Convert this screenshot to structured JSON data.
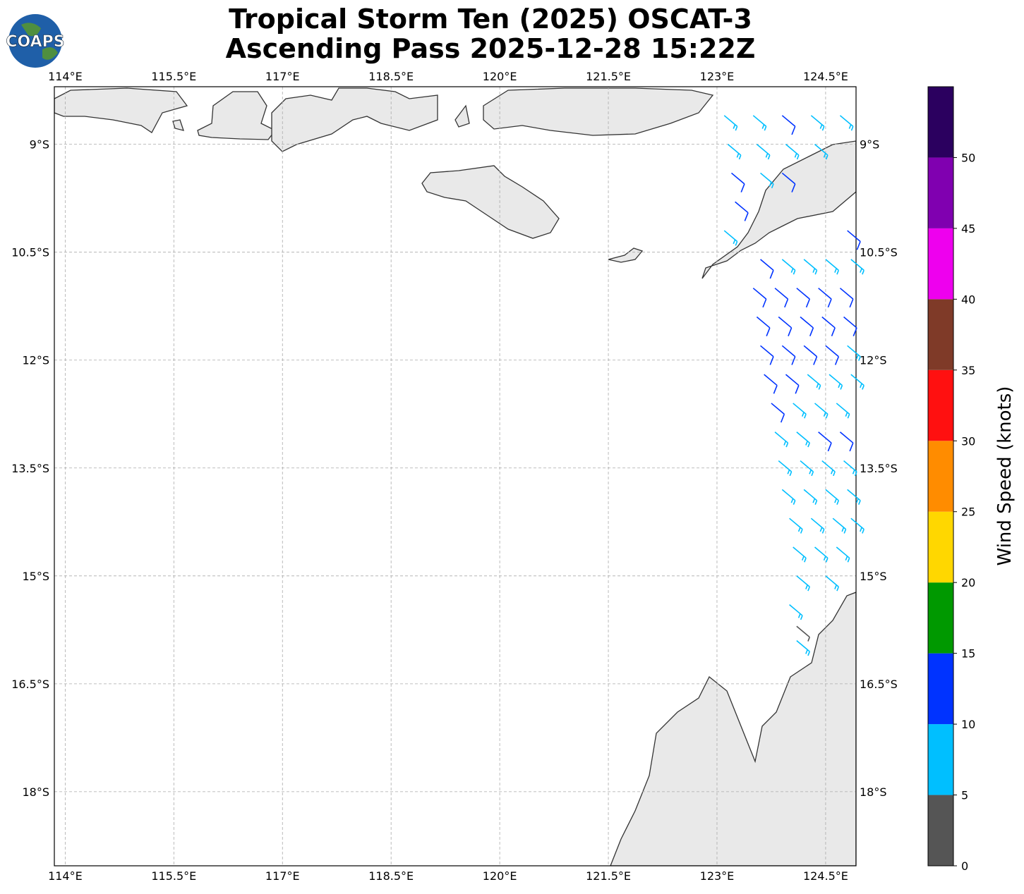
{
  "title": [
    "Tropical Storm Ten (2025) OSCAT-3",
    "Ascending Pass 2025-12-28 15:22Z"
  ],
  "logo": "COAPS",
  "map": {
    "lon_range": [
      113.85,
      124.92
    ],
    "lat_range": [
      -8.2,
      -19.03
    ],
    "xticks": [
      {
        "value": 114,
        "label": "114°E"
      },
      {
        "value": 115.5,
        "label": "115.5°E"
      },
      {
        "value": 117,
        "label": "117°E"
      },
      {
        "value": 118.5,
        "label": "118.5°E"
      },
      {
        "value": 120,
        "label": "120°E"
      },
      {
        "value": 121.5,
        "label": "121.5°E"
      },
      {
        "value": 123,
        "label": "123°E"
      },
      {
        "value": 124.5,
        "label": "124.5°E"
      }
    ],
    "yticks": [
      {
        "value": -9,
        "label": "9°S"
      },
      {
        "value": -10.5,
        "label": "10.5°S"
      },
      {
        "value": -12,
        "label": "12°S"
      },
      {
        "value": -13.5,
        "label": "13.5°S"
      },
      {
        "value": -15,
        "label": "15°S"
      },
      {
        "value": -16.5,
        "label": "16.5°S"
      },
      {
        "value": -18,
        "label": "18°S"
      }
    ],
    "grid": true,
    "wind_direction_deg": 130,
    "barbs": [
      [
        123.1,
        -8.6,
        8
      ],
      [
        123.5,
        -8.6,
        8
      ],
      [
        123.9,
        -8.6,
        12
      ],
      [
        124.3,
        -8.6,
        8
      ],
      [
        124.7,
        -8.6,
        8
      ],
      [
        123.15,
        -9.0,
        8
      ],
      [
        123.55,
        -9.0,
        8
      ],
      [
        123.95,
        -9.0,
        8
      ],
      [
        124.35,
        -9.0,
        8
      ],
      [
        123.2,
        -9.4,
        12
      ],
      [
        123.6,
        -9.4,
        8
      ],
      [
        123.9,
        -9.4,
        12
      ],
      [
        123.25,
        -9.8,
        12
      ],
      [
        123.1,
        -10.2,
        8
      ],
      [
        124.8,
        -10.2,
        12
      ],
      [
        123.6,
        -10.6,
        12
      ],
      [
        123.9,
        -10.6,
        8
      ],
      [
        124.2,
        -10.6,
        8
      ],
      [
        124.5,
        -10.6,
        8
      ],
      [
        124.85,
        -10.6,
        8
      ],
      [
        123.5,
        -11.0,
        12
      ],
      [
        123.8,
        -11.0,
        12
      ],
      [
        124.1,
        -11.0,
        12
      ],
      [
        124.4,
        -11.0,
        12
      ],
      [
        124.7,
        -11.0,
        12
      ],
      [
        123.55,
        -11.4,
        12
      ],
      [
        123.85,
        -11.4,
        12
      ],
      [
        124.15,
        -11.4,
        12
      ],
      [
        124.45,
        -11.4,
        12
      ],
      [
        124.75,
        -11.4,
        12
      ],
      [
        123.6,
        -11.8,
        12
      ],
      [
        123.9,
        -11.8,
        12
      ],
      [
        124.2,
        -11.8,
        12
      ],
      [
        124.5,
        -11.8,
        12
      ],
      [
        124.8,
        -11.8,
        8
      ],
      [
        123.65,
        -12.2,
        12
      ],
      [
        123.95,
        -12.2,
        12
      ],
      [
        124.25,
        -12.2,
        8
      ],
      [
        124.55,
        -12.2,
        8
      ],
      [
        124.85,
        -12.2,
        8
      ],
      [
        123.75,
        -12.6,
        12
      ],
      [
        124.05,
        -12.6,
        8
      ],
      [
        124.35,
        -12.6,
        8
      ],
      [
        124.65,
        -12.6,
        8
      ],
      [
        123.8,
        -13.0,
        8
      ],
      [
        124.1,
        -13.0,
        8
      ],
      [
        124.4,
        -13.0,
        12
      ],
      [
        124.7,
        -13.0,
        12
      ],
      [
        123.85,
        -13.4,
        8
      ],
      [
        124.15,
        -13.4,
        8
      ],
      [
        124.45,
        -13.4,
        8
      ],
      [
        124.75,
        -13.4,
        8
      ],
      [
        123.9,
        -13.8,
        8
      ],
      [
        124.2,
        -13.8,
        8
      ],
      [
        124.5,
        -13.8,
        8
      ],
      [
        124.8,
        -13.8,
        8
      ],
      [
        124.0,
        -14.2,
        8
      ],
      [
        124.3,
        -14.2,
        8
      ],
      [
        124.6,
        -14.2,
        8
      ],
      [
        124.85,
        -14.2,
        8
      ],
      [
        124.05,
        -14.6,
        8
      ],
      [
        124.35,
        -14.6,
        8
      ],
      [
        124.65,
        -14.6,
        8
      ],
      [
        124.1,
        -15.0,
        8
      ],
      [
        124.5,
        -15.0,
        8
      ],
      [
        124.0,
        -15.4,
        8
      ],
      [
        124.1,
        -15.7,
        3
      ],
      [
        124.1,
        -15.9,
        8
      ]
    ]
  },
  "colorbar": {
    "label": "Wind Speed (knots)",
    "bounds": [
      0,
      5,
      10,
      15,
      20,
      25,
      30,
      35,
      40,
      45,
      50,
      55
    ],
    "colors": [
      "#555555",
      "#00bfff",
      "#0033ff",
      "#009900",
      "#ffd700",
      "#ff8c00",
      "#ff1010",
      "#7f3a28",
      "#ee00ee",
      "#8000b0",
      "#2b005f"
    ],
    "ticks": [
      0,
      5,
      10,
      15,
      20,
      25,
      30,
      35,
      40,
      45,
      50
    ]
  }
}
